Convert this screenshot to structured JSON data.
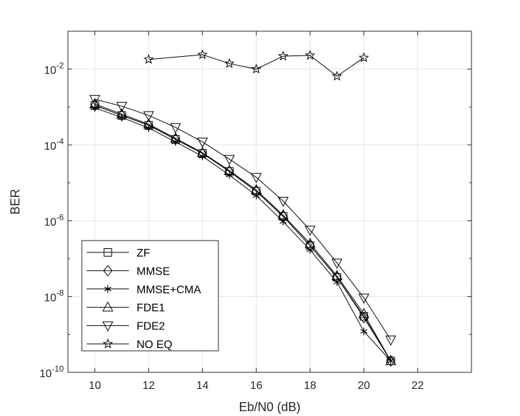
{
  "chart_data": {
    "type": "line",
    "title": "",
    "xlabel": "Eb/N0 (dB)",
    "ylabel": "BER",
    "xlim": [
      9,
      24
    ],
    "ylim_exponents": [
      -10,
      -1
    ],
    "yscale": "log",
    "grid": true,
    "legend_placement": "bottom-left",
    "x_ticks": [
      "10",
      "12",
      "14",
      "16",
      "18",
      "20",
      "22"
    ],
    "x_tick_values": [
      10,
      12,
      14,
      16,
      18,
      20,
      22
    ],
    "y_tick_exponents": [
      -10,
      -8,
      -6,
      -4,
      -2
    ],
    "y_tick_base": "10",
    "y_tick_exponent_labels": [
      "-10",
      "-8",
      "-6",
      "-4",
      "-2"
    ],
    "series": [
      {
        "name": "ZF",
        "marker": "square",
        "x": [
          10,
          11,
          12,
          13,
          14,
          15,
          16,
          17,
          18,
          19,
          20,
          21
        ],
        "y": [
          0.0011,
          0.0006,
          0.00033,
          0.00014,
          6e-05,
          2e-05,
          6e-06,
          1.3e-06,
          2.2e-07,
          3.2e-08,
          3e-09,
          2e-10
        ]
      },
      {
        "name": "MMSE",
        "marker": "diamond",
        "x": [
          10,
          11,
          12,
          13,
          14,
          15,
          16,
          17,
          18,
          19,
          20,
          21
        ],
        "y": [
          0.0011,
          0.0006,
          0.00033,
          0.00014,
          6e-05,
          2e-05,
          6e-06,
          1.3e-06,
          2.2e-07,
          3.2e-08,
          2.8e-09,
          2e-10
        ]
      },
      {
        "name": "MMSE+CMA",
        "marker": "star6",
        "x": [
          10,
          11,
          12,
          13,
          14,
          15,
          16,
          17,
          18,
          19,
          20,
          21
        ],
        "y": [
          0.00095,
          0.00053,
          0.00028,
          0.00012,
          5e-05,
          1.6e-05,
          4.6e-06,
          9.5e-07,
          1.7e-07,
          2.4e-08,
          1.2e-09,
          2e-10
        ]
      },
      {
        "name": "FDE1",
        "marker": "triangle-up",
        "x": [
          10,
          11,
          12,
          13,
          14,
          15,
          16,
          17,
          18,
          19,
          20,
          21
        ],
        "y": [
          0.0012,
          0.00065,
          0.00035,
          0.00015,
          6.2e-05,
          2.1e-05,
          6.5e-06,
          1.4e-06,
          2.5e-07,
          3.5e-08,
          3.5e-09,
          2e-10
        ]
      },
      {
        "name": "FDE2",
        "marker": "triangle-down",
        "x": [
          10,
          11,
          12,
          13,
          14,
          15,
          16,
          17,
          18,
          19,
          20,
          21
        ],
        "y": [
          0.0016,
          0.00105,
          0.0006,
          0.00029,
          0.00012,
          4.2e-05,
          1.4e-05,
          3.3e-06,
          5.7e-07,
          7.7e-08,
          9.2e-09,
          7.2e-10
        ]
      },
      {
        "name": "NO EQ",
        "marker": "pentagram",
        "x": [
          12,
          14,
          15,
          16,
          17,
          18,
          19,
          20
        ],
        "y": [
          0.018,
          0.024,
          0.014,
          0.01,
          0.022,
          0.023,
          0.0065,
          0.02
        ]
      }
    ]
  }
}
